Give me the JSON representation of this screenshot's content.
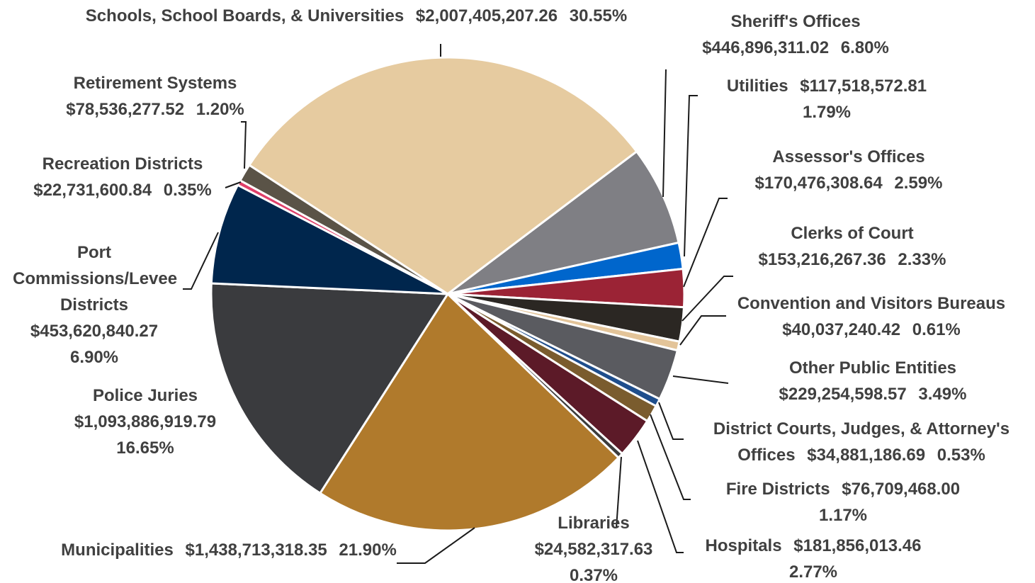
{
  "chart_data": {
    "type": "pie",
    "names": [
      "Schools, School Boards, & Universities",
      "Sheriff's Offices",
      "Utilities",
      "Assessor's Offices",
      "Clerks of Court",
      "Convention and Visitors Bureaus",
      "Other Public Entities",
      "District Courts, Judges, & Attorney's Offices",
      "Fire Districts",
      "Hospitals",
      "Libraries",
      "Municipalities",
      "Police Juries",
      "Port Commissions/Levee Districts",
      "Recreation Districts",
      "Retirement Systems"
    ],
    "amounts": [
      "$2,007,405,207.26",
      "$446,896,311.02",
      "$117,518,572.81",
      "$170,476,308.64",
      "$153,216,267.36",
      "$40,037,240.42",
      "$229,254,598.57",
      "$34,881,186.69",
      "$76,709,468.00",
      "$181,856,013.46",
      "$24,582,317.63",
      "$1,438,713,318.35",
      "$1,093,886,919.79",
      "$453,620,840.27",
      "$22,731,600.84",
      "$78,536,277.52"
    ],
    "values": [
      30.55,
      6.8,
      1.79,
      2.59,
      2.33,
      0.61,
      3.49,
      0.53,
      1.17,
      2.77,
      0.37,
      21.9,
      16.65,
      6.9,
      0.35,
      1.2
    ],
    "value_labels": [
      "30.55%",
      "6.80%",
      "1.79%",
      "2.59%",
      "2.33%",
      "0.61%",
      "3.49%",
      "0.53%",
      "1.17%",
      "2.77%",
      "0.37%",
      "21.90%",
      "16.65%",
      "6.90%",
      "0.35%",
      "1.20%"
    ],
    "colors": [
      "#e6cba0",
      "#7f7f84",
      "#0066cc",
      "#9b2335",
      "#2b2723",
      "#e3c499",
      "#5a5b60",
      "#1f4e8c",
      "#7a5c2e",
      "#5c1a28",
      "#3c3c3c",
      "#b07a2c",
      "#3a3b3e",
      "#00264d",
      "#e0406a",
      "#5a5347"
    ]
  }
}
